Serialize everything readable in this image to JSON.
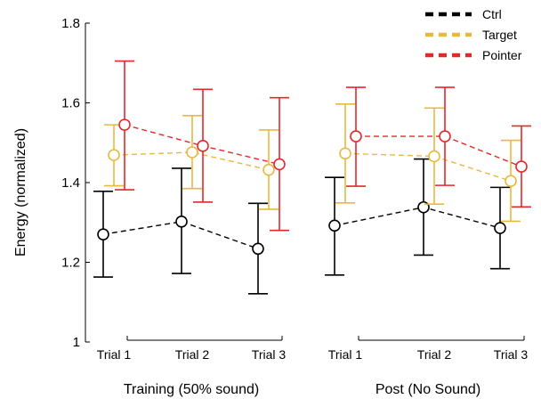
{
  "chart_data": {
    "type": "line",
    "ylabel": "Energy (normalized)",
    "ylim": [
      1,
      1.8
    ],
    "yticks": [
      1,
      1.2,
      1.4,
      1.6,
      1.8
    ],
    "ytick_labels": [
      "1",
      "1.2",
      "1.4",
      "1.6",
      "1.8"
    ],
    "grid": false,
    "legend_position": "top-right",
    "groups": [
      {
        "label": "Training (50% sound)",
        "trials": [
          "Trial 1",
          "Trial 2",
          "Trial 3"
        ]
      },
      {
        "label": "Post (No Sound)",
        "trials": [
          "Trial 1",
          "Trial 2",
          "Trial 3"
        ]
      }
    ],
    "series": [
      {
        "name": "Ctrl",
        "color": "#000000",
        "groups": [
          {
            "mean": [
              1.27,
              1.302,
              1.234
            ],
            "err_low": [
              1.163,
              1.172,
              1.121
            ],
            "err_high": [
              1.378,
              1.436,
              1.348
            ]
          },
          {
            "mean": [
              1.292,
              1.338,
              1.286
            ],
            "err_low": [
              1.168,
              1.218,
              1.184
            ],
            "err_high": [
              1.413,
              1.459,
              1.388
            ]
          }
        ]
      },
      {
        "name": "Target",
        "color": "#E8B93F",
        "groups": [
          {
            "mean": [
              1.469,
              1.476,
              1.432
            ],
            "err_low": [
              1.392,
              1.385,
              1.333
            ],
            "err_high": [
              1.545,
              1.568,
              1.532
            ]
          },
          {
            "mean": [
              1.473,
              1.466,
              1.404
            ],
            "err_low": [
              1.349,
              1.346,
              1.303
            ],
            "err_high": [
              1.597,
              1.587,
              1.506
            ]
          }
        ]
      },
      {
        "name": "Pointer",
        "color": "#E4282A",
        "groups": [
          {
            "mean": [
              1.545,
              1.492,
              1.446
            ],
            "err_low": [
              1.382,
              1.351,
              1.28
            ],
            "err_high": [
              1.705,
              1.634,
              1.613
            ]
          },
          {
            "mean": [
              1.516,
              1.516,
              1.44
            ],
            "err_low": [
              1.391,
              1.393,
              1.339
            ],
            "err_high": [
              1.639,
              1.639,
              1.542
            ]
          }
        ]
      }
    ]
  }
}
